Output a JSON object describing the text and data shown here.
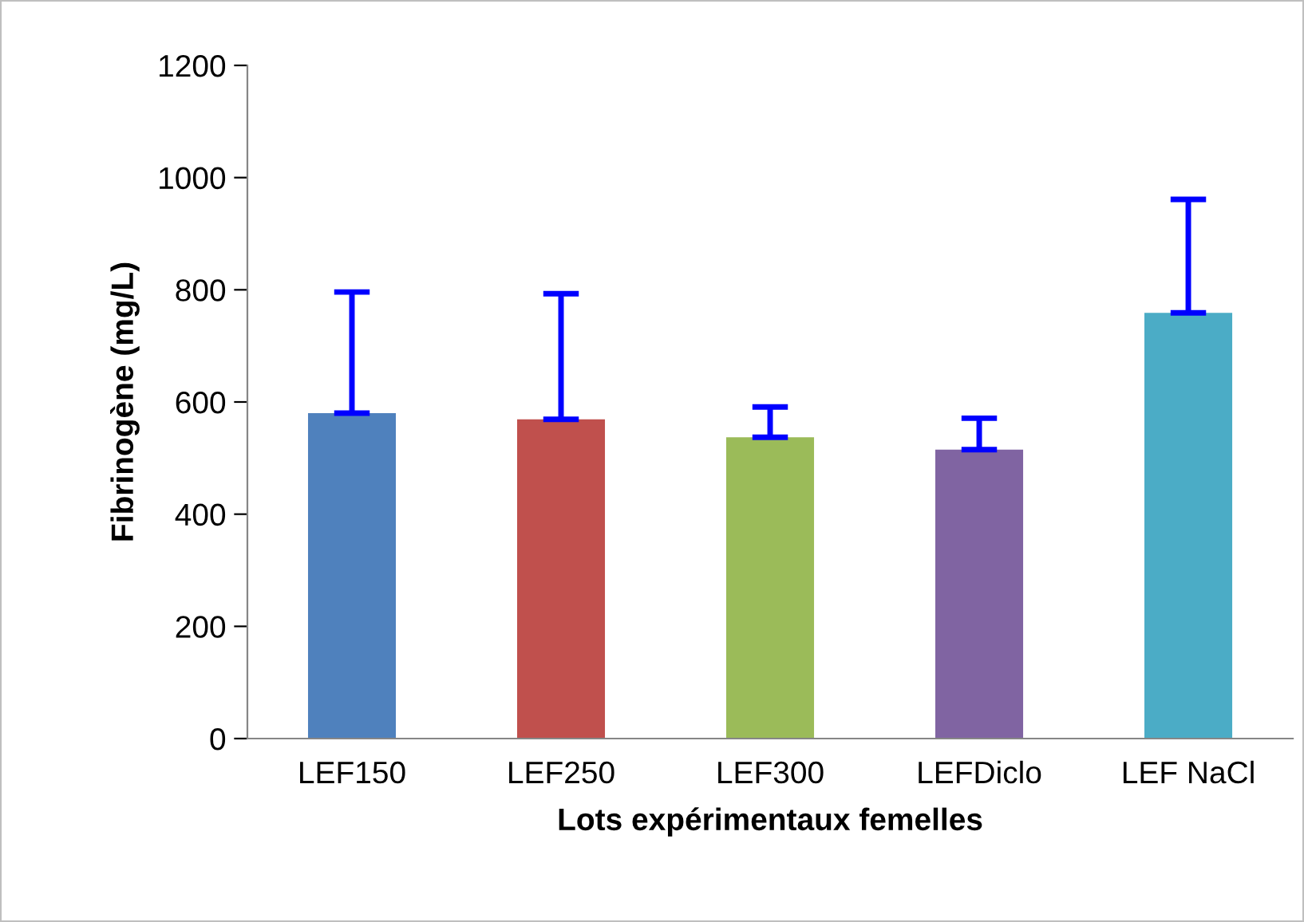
{
  "chart_data": {
    "type": "bar",
    "categories": [
      "LEF150",
      "LEF250",
      "LEF300",
      "LEFDiclo",
      "LEF NaCl"
    ],
    "values": [
      580,
      569,
      537,
      515,
      759
    ],
    "colors": [
      "#4f81bd",
      "#c0504d",
      "#9bbb59",
      "#8064a2",
      "#4bacc6"
    ],
    "errors": [
      [
        580,
        796
      ],
      [
        569,
        793
      ],
      [
        537,
        591
      ],
      [
        515,
        571
      ],
      [
        759,
        961
      ]
    ],
    "xlabel": "Lots expérimentaux femelles",
    "ylabel": "Fibrinogène (mg/L)",
    "ylim": [
      0,
      1200
    ],
    "yticks": [
      0,
      200,
      400,
      600,
      800,
      1000,
      1200
    ],
    "grid": false,
    "legend": false
  }
}
